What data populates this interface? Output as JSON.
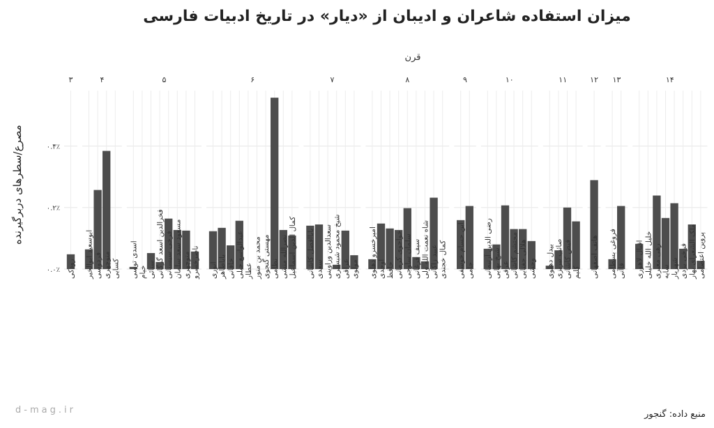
{
  "chart_data": {
    "type": "bar",
    "title": "میزان استفاده شاعران و ادیبان از «دیار» در تاریخ ادبیات فارسی",
    "facet_title": "قرن",
    "y_label": "مصرع/سطرهای دربرگیرنده",
    "source": "منبع داده: گنجور",
    "watermark": "d-mag.ir",
    "color": "#4d4d4d",
    "grid": true,
    "ylim": [
      0,
      0.58
    ],
    "yticks": [
      {
        "value": 0,
        "label": "٠.٠٪"
      },
      {
        "value": 0.2,
        "label": "٠.٢٪"
      },
      {
        "value": 0.4,
        "label": "٠.۴٪"
      }
    ],
    "facets": [
      {
        "name": "۳",
        "categories": [
          "رودکی"
        ],
        "values": [
          0.048
        ]
      },
      {
        "name": "۴",
        "categories": [
          "ابوسعید ابوالخیر",
          "فردوسی",
          "منوچهری",
          "کسایی"
        ],
        "values": [
          0.064,
          0.257,
          0.384,
          0
        ]
      },
      {
        "name": "۵",
        "categories": [
          "اسدی توسی",
          "خیام",
          "سنائی",
          "فخرالدین اسعد گرگانی",
          "فرخی سیستانی",
          "مسعود سعد سلمان",
          "منوچهری",
          "ناصرخسرو"
        ],
        "values": [
          0.007,
          0,
          0.052,
          0.023,
          0.164,
          0.127,
          0.125,
          0.057
        ]
      },
      {
        "name": "۶",
        "categories": [
          "انوری",
          "باباطاهر",
          "خاقانی",
          "عبدالواسع جبلی",
          "عطار",
          "محمد بن منور",
          "مهستی گنجوی",
          "نظامی",
          "نصرالله منشی",
          "کمال الدین اسماعیل"
        ],
        "values": [
          0.123,
          0.134,
          0.077,
          0.157,
          0,
          0,
          0,
          0.557,
          0.127,
          0.109
        ]
      },
      {
        "name": "۷",
        "categories": [
          "باباافضل کاشانی",
          "سعدی",
          "سعدالدین وراوینی",
          "شیخ محمود شبستری",
          "عراقی",
          "مولوی"
        ],
        "values": [
          0.141,
          0.145,
          0,
          0.014,
          0.125,
          0.045
        ]
      },
      {
        "name": "۸",
        "categories": [
          "امیرخسرو دهلوی",
          "اوحدی",
          "حافظ",
          "خواجوی کرمانی",
          "سلمان ساوجی",
          "سیف فرغانی",
          "شاه نعمت الله ولی",
          "عبید زاکانی",
          "کمال خجندی"
        ],
        "values": [
          0.032,
          0.148,
          0.132,
          0.127,
          0.198,
          0.039,
          0.025,
          0.232,
          0
        ]
      },
      {
        "name": "۹",
        "categories": [
          "ابن حسام خوسفی",
          "جامی"
        ],
        "values": [
          0.159,
          0.205
        ]
      },
      {
        "name": "۱۰",
        "categories": [
          "رضی الدین آرتیمانی",
          "شیخ بهایی",
          "عرفی",
          "محتشم کاشانی",
          "هلالی جغتایی",
          "وحشی"
        ],
        "values": [
          0.066,
          0.08,
          0.207,
          0.13,
          0.13,
          0.091
        ]
      },
      {
        "name": "۱۱",
        "categories": [
          "بیدل دهلوی",
          "صائب تبریزی",
          "فیض کاشانی",
          "کلیم"
        ],
        "values": [
          0.011,
          0.061,
          0.2,
          0.155
        ]
      },
      {
        "name": "۱۲",
        "categories": [
          "هاتف اصفهانی"
        ],
        "values": [
          0.289
        ]
      },
      {
        "name": "۱۳",
        "categories": [
          "فروغی بسطامی",
          "قاآنی"
        ],
        "values": [
          0.032,
          0.205
        ]
      },
      {
        "name": "۱۴",
        "categories": [
          "اقبال لاهوری",
          "خلیل الله خلیلی",
          "رهی معیری",
          "سایه",
          "شهریار",
          "فرخی یزدی",
          "ملک الشعرای بهار",
          "پروین اعتصامی"
        ],
        "values": [
          0.082,
          0,
          0.239,
          0.166,
          0.214,
          0.066,
          0.145,
          0.027
        ]
      }
    ]
  }
}
